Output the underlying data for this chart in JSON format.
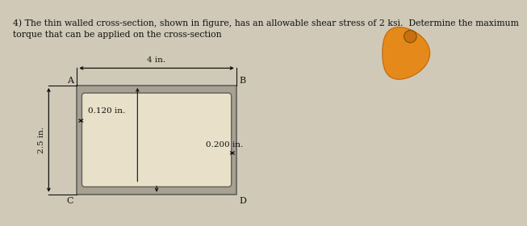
{
  "title_line1": "4) The thin walled cross-section, shown in figure, has an allowable shear stress of 2 ksi.  Determine the maximum",
  "title_line2": "torque that can be applied on the cross-section",
  "bg_color": "#d0c9b8",
  "outer_fill": "#a8a090",
  "inner_fill": "#e8e0c8",
  "edge_color": "#606060",
  "text_color": "#111111",
  "label_A": "A",
  "label_B": "B",
  "label_C": "C",
  "label_D": "D",
  "dim_width": "4 in.",
  "dim_height": "2.5 in.",
  "dim_top_wall": "0.120 in.",
  "dim_side_wall": "0.200 in."
}
